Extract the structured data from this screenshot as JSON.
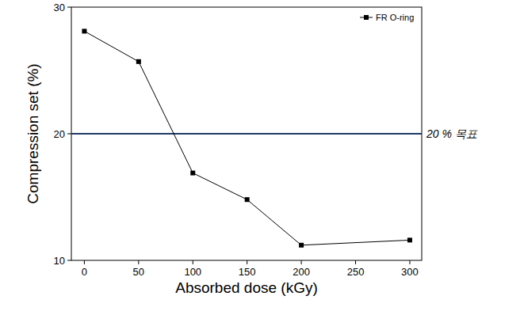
{
  "chart_data": {
    "type": "line",
    "x_label": "Absorbed dose (kGy)",
    "y_label": "Compression set (%)",
    "x": [
      0,
      50,
      100,
      150,
      200,
      300
    ],
    "series": [
      {
        "name": "FR O-ring",
        "color": "#000000",
        "marker": "square",
        "line_style": "solid",
        "values": [
          28.1,
          25.7,
          16.9,
          14.8,
          11.2,
          11.6
        ]
      }
    ],
    "xlim": [
      -12,
      311
    ],
    "xticks": [
      0,
      50,
      100,
      150,
      200,
      250,
      300
    ],
    "ylim": [
      10,
      30
    ],
    "yticks": [
      10,
      20,
      30
    ],
    "grid": false,
    "legend": "upper right",
    "annotations": [
      {
        "text": "20 % 목표",
        "y": 20,
        "color": "#203864"
      }
    ]
  }
}
